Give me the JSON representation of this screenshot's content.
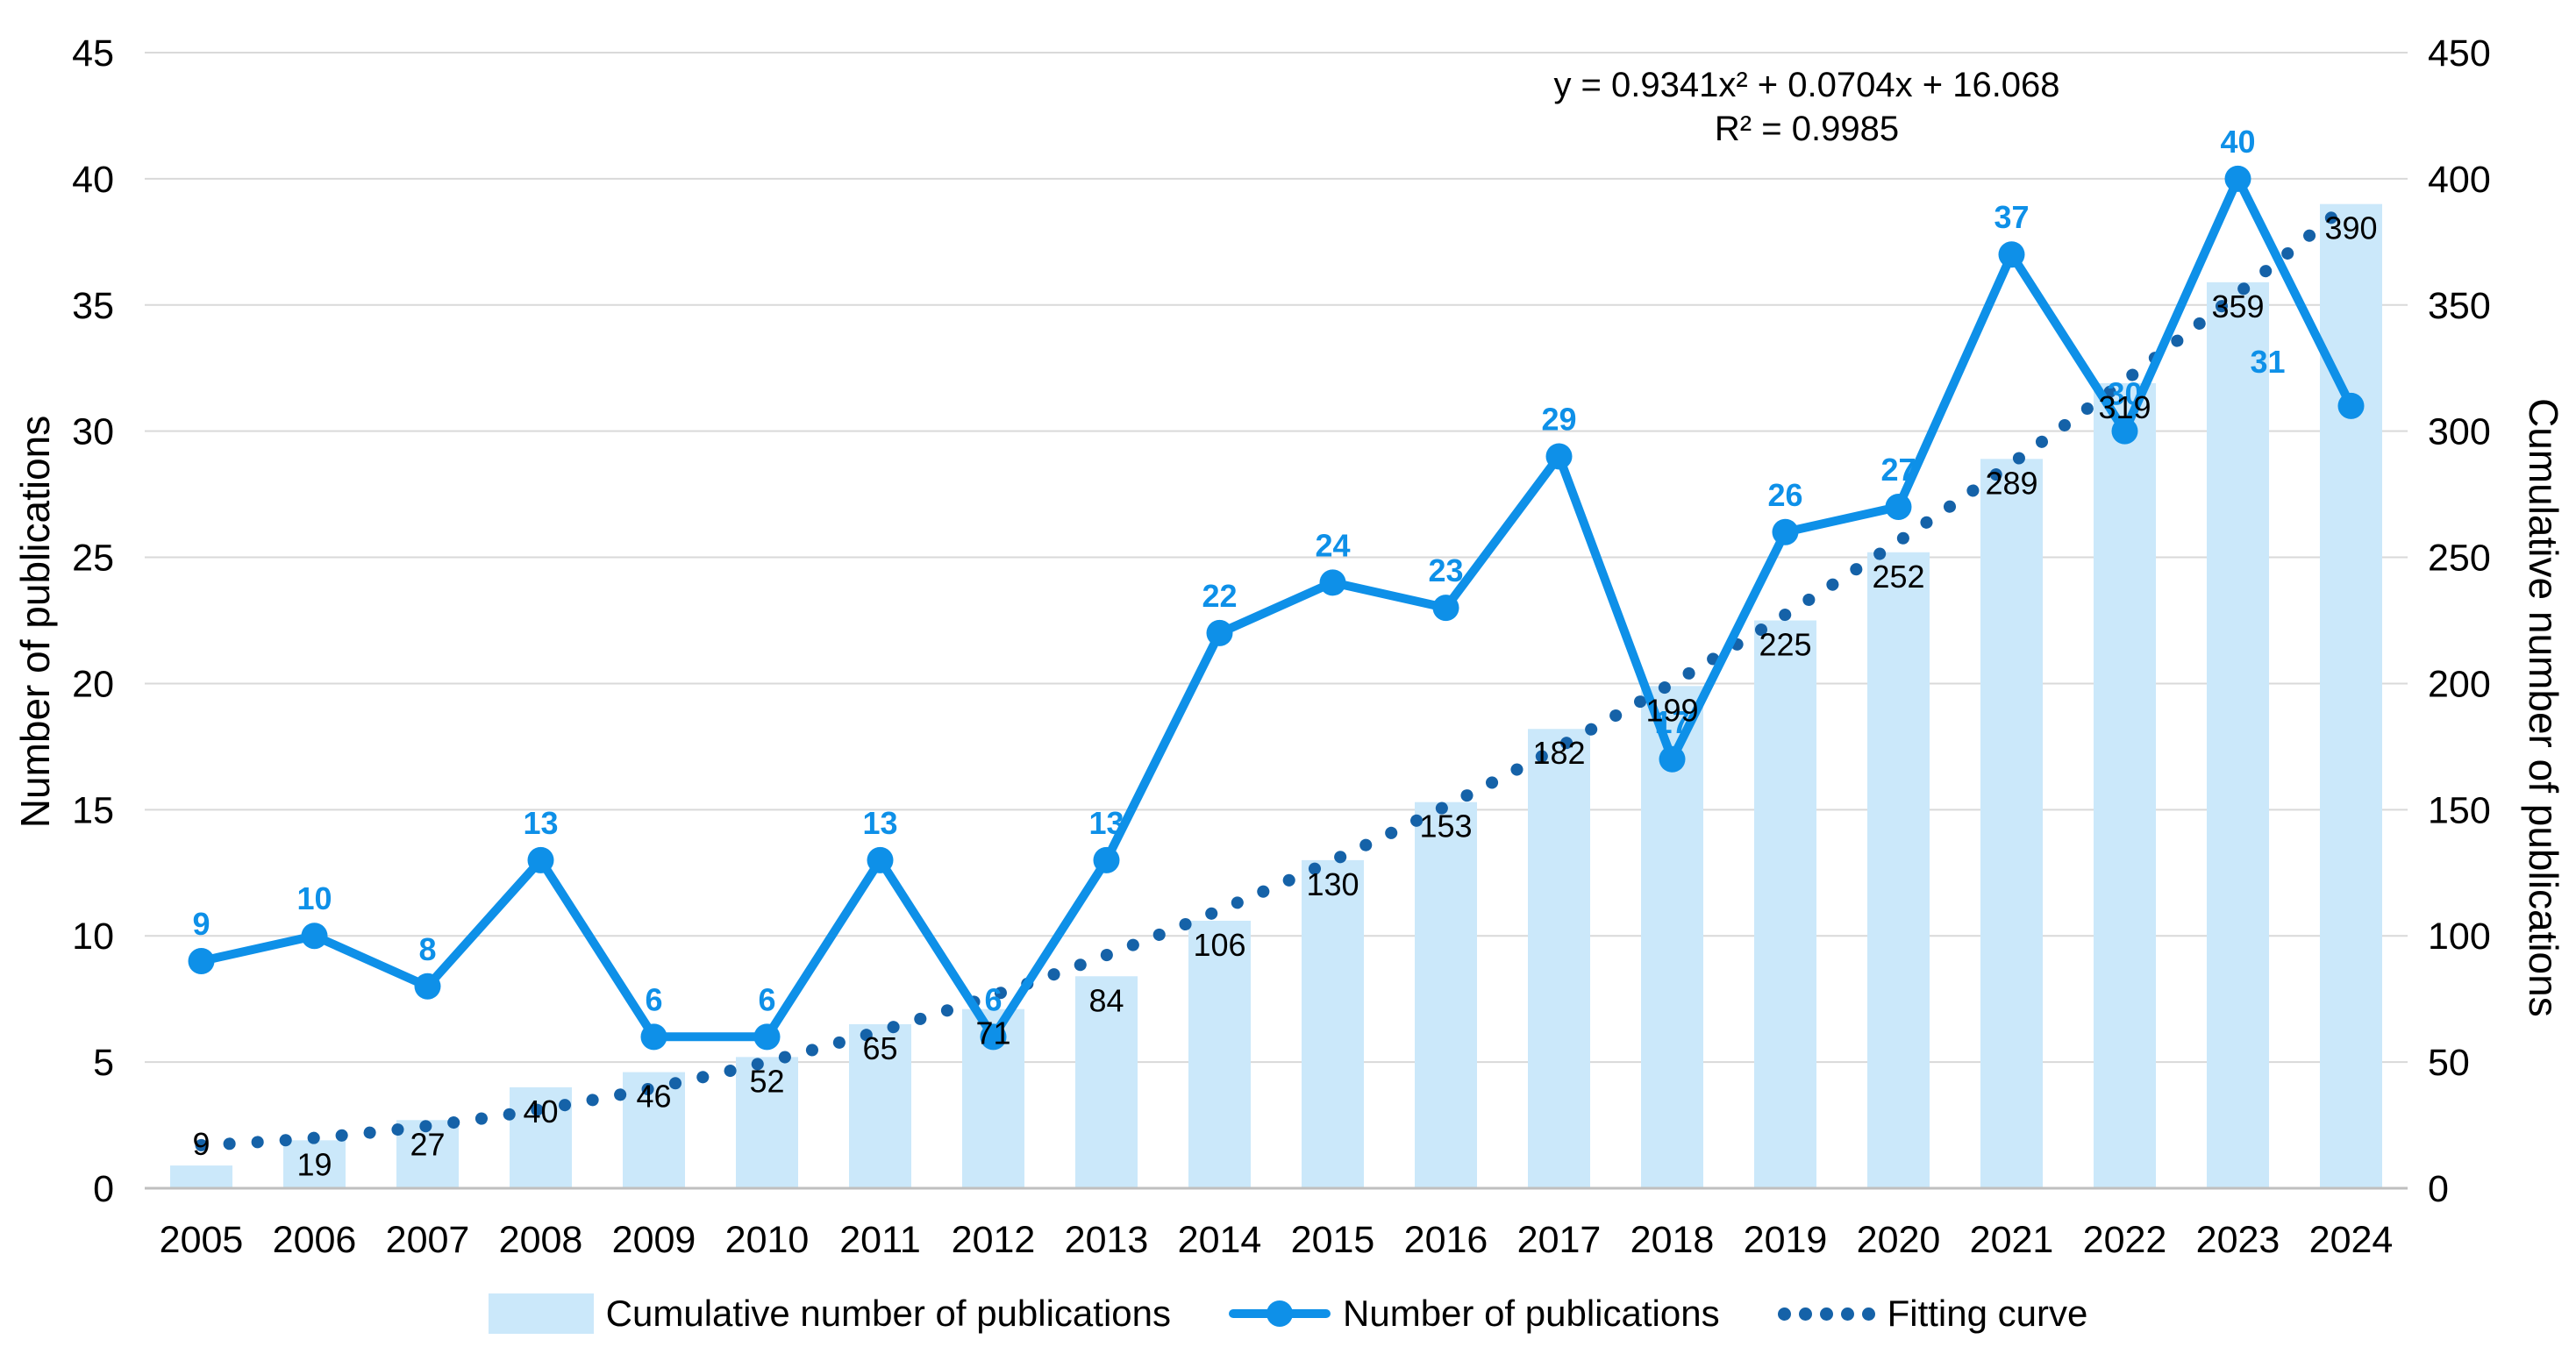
{
  "chart_data": {
    "type": "combo-bar-line",
    "categories": [
      "2005",
      "2006",
      "2007",
      "2008",
      "2009",
      "2010",
      "2011",
      "2012",
      "2013",
      "2014",
      "2015",
      "2016",
      "2017",
      "2018",
      "2019",
      "2020",
      "2021",
      "2022",
      "2023",
      "2024"
    ],
    "series": [
      {
        "name": "Cumulative number of publications",
        "type": "bar",
        "axis": "right",
        "values": [
          9,
          19,
          27,
          40,
          46,
          52,
          65,
          71,
          84,
          106,
          130,
          153,
          182,
          199,
          225,
          252,
          289,
          319,
          359,
          390
        ],
        "color": "#CBE8FA"
      },
      {
        "name": "Number of publications",
        "type": "line",
        "axis": "left",
        "values": [
          9,
          10,
          8,
          13,
          6,
          6,
          13,
          6,
          13,
          22,
          24,
          23,
          29,
          17,
          26,
          27,
          37,
          30,
          40,
          31
        ],
        "color": "#0E90E8"
      },
      {
        "name": "Fitting curve",
        "type": "dotted-line",
        "axis": "right",
        "fit_coefficients": {
          "a": 0.9341,
          "b": 0.0704,
          "c": 16.068
        },
        "color": "#1562A8"
      }
    ],
    "left_axis": {
      "label": "Number of publications",
      "min": 0,
      "max": 45,
      "step": 5
    },
    "right_axis": {
      "label": "Cumulative number of publications",
      "min": 0,
      "max": 450,
      "step": 50
    },
    "annotation": {
      "equation": "y = 0.9341x² + 0.0704x + 16.068",
      "r_squared": "R² = 0.9985"
    },
    "grid": "horizontal",
    "legend_position": "bottom",
    "colors": {
      "bar_fill": "#CBE8FA",
      "line": "#0E90E8",
      "line_label": "#0E90E8",
      "fit_dots": "#1562A8",
      "bar_label": "#000000",
      "gridline": "#D9D9D9",
      "axis_line": "#BFBFBF",
      "text": "#000000"
    }
  }
}
